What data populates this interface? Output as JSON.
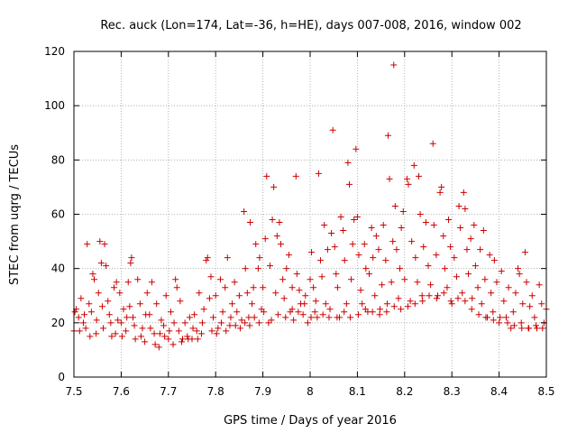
{
  "chart_data": {
    "type": "scatter",
    "title": "Rec. auck (Lon=174, Lat=-36, h=HE), days 007-008, 2016, window 002",
    "xlabel": "GPS time / Days of year 2016",
    "ylabel": "STEC from uqrg / TECUs",
    "xlim": [
      7.5,
      8.5
    ],
    "ylim": [
      0,
      120
    ],
    "xticks": [
      7.5,
      7.6,
      7.7,
      7.8,
      7.9,
      8.0,
      8.1,
      8.2,
      8.3,
      8.4,
      8.5
    ],
    "xtick_labels": [
      "7.5",
      "7.6",
      "7.7",
      "7.8",
      "7.9",
      "8",
      "8.1",
      "8.2",
      "8.3",
      "8.4",
      "8.5"
    ],
    "yticks": [
      0,
      20,
      40,
      60,
      80,
      100,
      120
    ],
    "ytick_labels": [
      "0",
      "20",
      "40",
      "60",
      "80",
      "100",
      "120"
    ],
    "grid": true,
    "marker": "+",
    "color": "#cc0000",
    "series": [
      {
        "name": "STEC",
        "points": [
          [
            7.5,
            17
          ],
          [
            7.505,
            25
          ],
          [
            7.51,
            22
          ],
          [
            7.515,
            29
          ],
          [
            7.52,
            20
          ],
          [
            7.525,
            18
          ],
          [
            7.528,
            49
          ],
          [
            7.532,
            27
          ],
          [
            7.537,
            24
          ],
          [
            7.54,
            38
          ],
          [
            7.543,
            36
          ],
          [
            7.547,
            16
          ],
          [
            7.552,
            31
          ],
          [
            7.555,
            50
          ],
          [
            7.558,
            42
          ],
          [
            7.56,
            26
          ],
          [
            7.565,
            49
          ],
          [
            7.568,
            41
          ],
          [
            7.572,
            28
          ],
          [
            7.575,
            23
          ],
          [
            7.58,
            15
          ],
          [
            7.585,
            33
          ],
          [
            7.59,
            35
          ],
          [
            7.593,
            21
          ],
          [
            7.597,
            31
          ],
          [
            7.6,
            20
          ],
          [
            7.605,
            25
          ],
          [
            7.61,
            17
          ],
          [
            7.615,
            35
          ],
          [
            7.618,
            26
          ],
          [
            7.62,
            42
          ],
          [
            7.622,
            44
          ],
          [
            7.625,
            22
          ],
          [
            7.63,
            14
          ],
          [
            7.635,
            36
          ],
          [
            7.64,
            27
          ],
          [
            7.645,
            18
          ],
          [
            7.65,
            13
          ],
          [
            7.655,
            31
          ],
          [
            7.66,
            23
          ],
          [
            7.665,
            35
          ],
          [
            7.67,
            16
          ],
          [
            7.675,
            27
          ],
          [
            7.68,
            11
          ],
          [
            7.685,
            21
          ],
          [
            7.69,
            19
          ],
          [
            7.695,
            30
          ],
          [
            7.7,
            14
          ],
          [
            7.705,
            24
          ],
          [
            7.71,
            12
          ],
          [
            7.715,
            36
          ],
          [
            7.718,
            33
          ],
          [
            7.722,
            17
          ],
          [
            7.725,
            28
          ],
          [
            7.73,
            14
          ],
          [
            7.735,
            20
          ],
          [
            7.74,
            15
          ],
          [
            7.745,
            22
          ],
          [
            7.75,
            14
          ],
          [
            7.755,
            23
          ],
          [
            7.76,
            17
          ],
          [
            7.765,
            31
          ],
          [
            7.77,
            16
          ],
          [
            7.775,
            25
          ],
          [
            7.78,
            43
          ],
          [
            7.783,
            44
          ],
          [
            7.787,
            29
          ],
          [
            7.79,
            37
          ],
          [
            7.795,
            22
          ],
          [
            7.8,
            30
          ],
          [
            7.805,
            18
          ],
          [
            7.81,
            36
          ],
          [
            7.815,
            24
          ],
          [
            7.82,
            33
          ],
          [
            7.825,
            44
          ],
          [
            7.83,
            19
          ],
          [
            7.835,
            27
          ],
          [
            7.84,
            35
          ],
          [
            7.845,
            24
          ],
          [
            7.85,
            30
          ],
          [
            7.855,
            21
          ],
          [
            7.86,
            61
          ],
          [
            7.863,
            40
          ],
          [
            7.867,
            31
          ],
          [
            7.87,
            22
          ],
          [
            7.873,
            57
          ],
          [
            7.877,
            27
          ],
          [
            7.88,
            33
          ],
          [
            7.885,
            49
          ],
          [
            7.89,
            40
          ],
          [
            7.893,
            44
          ],
          [
            7.897,
            25
          ],
          [
            7.9,
            33
          ],
          [
            7.905,
            51
          ],
          [
            7.908,
            74
          ],
          [
            7.912,
            20
          ],
          [
            7.915,
            41
          ],
          [
            7.92,
            58
          ],
          [
            7.923,
            70
          ],
          [
            7.927,
            31
          ],
          [
            7.93,
            52
          ],
          [
            7.935,
            57
          ],
          [
            7.938,
            49
          ],
          [
            7.942,
            36
          ],
          [
            7.945,
            29
          ],
          [
            7.95,
            40
          ],
          [
            7.955,
            45
          ],
          [
            7.958,
            24
          ],
          [
            7.962,
            33
          ],
          [
            7.965,
            21
          ],
          [
            7.97,
            74
          ],
          [
            7.972,
            38
          ],
          [
            7.977,
            32
          ],
          [
            7.98,
            27
          ],
          [
            7.985,
            23
          ],
          [
            7.99,
            30
          ],
          [
            7.995,
            20
          ],
          [
            8.0,
            36
          ],
          [
            8.003,
            46
          ],
          [
            8.007,
            33
          ],
          [
            8.01,
            24
          ],
          [
            8.015,
            22
          ],
          [
            8.018,
            75
          ],
          [
            8.022,
            43
          ],
          [
            8.025,
            37
          ],
          [
            8.03,
            56
          ],
          [
            8.033,
            27
          ],
          [
            8.037,
            47
          ],
          [
            8.04,
            22
          ],
          [
            8.045,
            53
          ],
          [
            8.048,
            91
          ],
          [
            8.052,
            48
          ],
          [
            8.055,
            38
          ],
          [
            8.058,
            33
          ],
          [
            8.062,
            22
          ],
          [
            8.065,
            59
          ],
          [
            8.07,
            54
          ],
          [
            8.073,
            43
          ],
          [
            8.077,
            27
          ],
          [
            8.08,
            79
          ],
          [
            8.083,
            71
          ],
          [
            8.087,
            36
          ],
          [
            8.09,
            49
          ],
          [
            8.093,
            58
          ],
          [
            8.097,
            84
          ],
          [
            8.1,
            59
          ],
          [
            8.103,
            45
          ],
          [
            8.107,
            32
          ],
          [
            8.11,
            27
          ],
          [
            8.115,
            49
          ],
          [
            8.118,
            40
          ],
          [
            8.122,
            24
          ],
          [
            8.125,
            38
          ],
          [
            8.13,
            55
          ],
          [
            8.133,
            44
          ],
          [
            8.137,
            30
          ],
          [
            8.14,
            52
          ],
          [
            8.145,
            47
          ],
          [
            8.148,
            25
          ],
          [
            8.152,
            34
          ],
          [
            8.155,
            56
          ],
          [
            8.16,
            43
          ],
          [
            8.163,
            27
          ],
          [
            8.165,
            89
          ],
          [
            8.168,
            73
          ],
          [
            8.172,
            35
          ],
          [
            8.175,
            50
          ],
          [
            8.177,
            115
          ],
          [
            8.18,
            63
          ],
          [
            8.183,
            47
          ],
          [
            8.187,
            29
          ],
          [
            8.19,
            40
          ],
          [
            8.193,
            55
          ],
          [
            8.197,
            61
          ],
          [
            8.2,
            36
          ],
          [
            8.205,
            73
          ],
          [
            8.208,
            71
          ],
          [
            8.212,
            28
          ],
          [
            8.215,
            50
          ],
          [
            8.22,
            78
          ],
          [
            8.223,
            44
          ],
          [
            8.227,
            35
          ],
          [
            8.23,
            74
          ],
          [
            8.233,
            60
          ],
          [
            8.237,
            30
          ],
          [
            8.24,
            48
          ],
          [
            8.245,
            57
          ],
          [
            8.25,
            41
          ],
          [
            8.255,
            34
          ],
          [
            8.26,
            86
          ],
          [
            8.262,
            56
          ],
          [
            8.267,
            45
          ],
          [
            8.27,
            30
          ],
          [
            8.275,
            68
          ],
          [
            8.278,
            70
          ],
          [
            8.282,
            52
          ],
          [
            8.285,
            40
          ],
          [
            8.29,
            33
          ],
          [
            8.293,
            58
          ],
          [
            8.297,
            48
          ],
          [
            8.3,
            27
          ],
          [
            8.305,
            44
          ],
          [
            8.31,
            37
          ],
          [
            8.315,
            63
          ],
          [
            8.318,
            55
          ],
          [
            8.322,
            31
          ],
          [
            8.325,
            68
          ],
          [
            8.328,
            62
          ],
          [
            8.332,
            47
          ],
          [
            8.335,
            38
          ],
          [
            8.34,
            51
          ],
          [
            8.343,
            29
          ],
          [
            8.347,
            56
          ],
          [
            8.35,
            41
          ],
          [
            8.355,
            33
          ],
          [
            8.36,
            47
          ],
          [
            8.363,
            27
          ],
          [
            8.367,
            54
          ],
          [
            8.37,
            36
          ],
          [
            8.375,
            22
          ],
          [
            8.38,
            45
          ],
          [
            8.383,
            31
          ],
          [
            8.387,
            24
          ],
          [
            8.39,
            43
          ],
          [
            8.395,
            35
          ],
          [
            8.4,
            20
          ],
          [
            8.405,
            39
          ],
          [
            8.41,
            28
          ],
          [
            8.415,
            22
          ],
          [
            8.42,
            33
          ],
          [
            8.425,
            18
          ],
          [
            8.43,
            24
          ],
          [
            8.435,
            31
          ],
          [
            8.44,
            40
          ],
          [
            8.443,
            38
          ],
          [
            8.447,
            20
          ],
          [
            8.45,
            27
          ],
          [
            8.455,
            46
          ],
          [
            8.458,
            35
          ],
          [
            8.462,
            18
          ],
          [
            8.465,
            26
          ],
          [
            8.47,
            30
          ],
          [
            8.475,
            22
          ],
          [
            8.48,
            18
          ],
          [
            8.485,
            34
          ],
          [
            8.49,
            27
          ],
          [
            8.495,
            20
          ],
          [
            8.5,
            25
          ],
          [
            7.502,
            24
          ],
          [
            7.512,
            17
          ],
          [
            7.522,
            23
          ],
          [
            7.534,
            15
          ],
          [
            7.548,
            21
          ],
          [
            7.562,
            18
          ],
          [
            7.578,
            20
          ],
          [
            7.588,
            16
          ],
          [
            7.602,
            15
          ],
          [
            7.612,
            22
          ],
          [
            7.628,
            19
          ],
          [
            7.642,
            15
          ],
          [
            7.652,
            23
          ],
          [
            7.662,
            18
          ],
          [
            7.672,
            12
          ],
          [
            7.682,
            16
          ],
          [
            7.692,
            15
          ],
          [
            7.702,
            17
          ],
          [
            7.712,
            20
          ],
          [
            7.728,
            13
          ],
          [
            7.742,
            14
          ],
          [
            7.752,
            18
          ],
          [
            7.762,
            14
          ],
          [
            7.772,
            20
          ],
          [
            7.792,
            17
          ],
          [
            7.802,
            16
          ],
          [
            7.812,
            20
          ],
          [
            7.822,
            17
          ],
          [
            7.832,
            22
          ],
          [
            7.842,
            19
          ],
          [
            7.852,
            18
          ],
          [
            7.862,
            20
          ],
          [
            7.872,
            19
          ],
          [
            7.882,
            22
          ],
          [
            7.892,
            20
          ],
          [
            7.902,
            24
          ],
          [
            7.918,
            21
          ],
          [
            7.932,
            23
          ],
          [
            7.948,
            22
          ],
          [
            7.962,
            25
          ],
          [
            7.975,
            24
          ],
          [
            7.988,
            27
          ],
          [
            8.002,
            22
          ],
          [
            8.012,
            28
          ],
          [
            8.027,
            23
          ],
          [
            8.042,
            25
          ],
          [
            8.057,
            22
          ],
          [
            8.072,
            24
          ],
          [
            8.085,
            22
          ],
          [
            8.102,
            23
          ],
          [
            8.117,
            25
          ],
          [
            8.132,
            24
          ],
          [
            8.147,
            23
          ],
          [
            8.162,
            24
          ],
          [
            8.178,
            26
          ],
          [
            8.192,
            25
          ],
          [
            8.207,
            26
          ],
          [
            8.222,
            27
          ],
          [
            8.238,
            28
          ],
          [
            8.252,
            30
          ],
          [
            8.268,
            29
          ],
          [
            8.283,
            31
          ],
          [
            8.298,
            28
          ],
          [
            8.313,
            29
          ],
          [
            8.328,
            28
          ],
          [
            8.342,
            25
          ],
          [
            8.357,
            23
          ],
          [
            8.372,
            22
          ],
          [
            8.388,
            21
          ],
          [
            8.402,
            22
          ],
          [
            8.418,
            20
          ],
          [
            8.432,
            19
          ],
          [
            8.448,
            18
          ],
          [
            8.463,
            18
          ],
          [
            8.478,
            19
          ],
          [
            8.492,
            18
          ]
        ]
      }
    ]
  }
}
